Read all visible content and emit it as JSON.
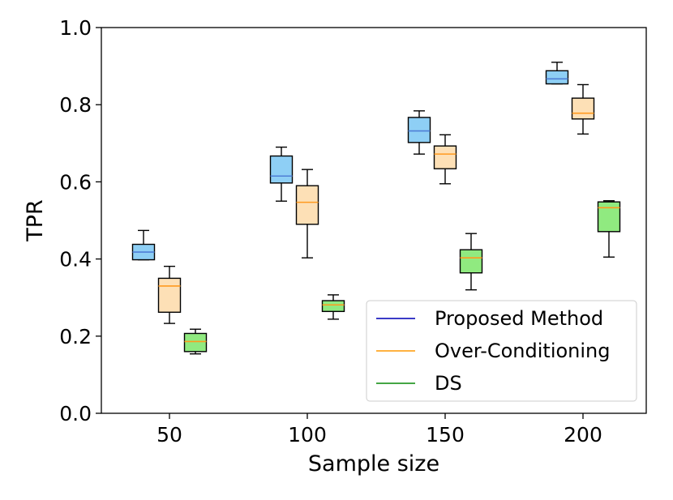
{
  "chart_data": {
    "type": "boxplot",
    "title": "",
    "xlabel": "Sample size",
    "ylabel": "TPR",
    "ylim": [
      0.0,
      1.0
    ],
    "yticks": [
      "0.0",
      "0.2",
      "0.4",
      "0.6",
      "0.8",
      "1.0"
    ],
    "categories": [
      "50",
      "100",
      "150",
      "200"
    ],
    "legend_position": "bottom-right",
    "series": [
      {
        "name": "Proposed Method",
        "legend_color": "#1f1fbf",
        "fill": "#8ecff5",
        "median_color": "#4f7fd6",
        "boxes": [
          {
            "whislo": 0.398,
            "q1": 0.398,
            "med": 0.418,
            "q3": 0.438,
            "whishi": 0.474
          },
          {
            "whislo": 0.55,
            "q1": 0.597,
            "med": 0.615,
            "q3": 0.667,
            "whishi": 0.69
          },
          {
            "whislo": 0.672,
            "q1": 0.702,
            "med": 0.732,
            "q3": 0.767,
            "whishi": 0.784
          },
          {
            "whislo": 0.854,
            "q1": 0.854,
            "med": 0.867,
            "q3": 0.888,
            "whishi": 0.91
          }
        ]
      },
      {
        "name": "Over-Conditioning",
        "legend_color": "#ffa726",
        "fill": "#fde0b6",
        "median_color": "#ff9a1f",
        "boxes": [
          {
            "whislo": 0.233,
            "q1": 0.262,
            "med": 0.33,
            "q3": 0.35,
            "whishi": 0.381
          },
          {
            "whislo": 0.403,
            "q1": 0.49,
            "med": 0.547,
            "q3": 0.59,
            "whishi": 0.632
          },
          {
            "whislo": 0.595,
            "q1": 0.634,
            "med": 0.672,
            "q3": 0.693,
            "whishi": 0.722
          },
          {
            "whislo": 0.724,
            "q1": 0.763,
            "med": 0.778,
            "q3": 0.817,
            "whishi": 0.852
          }
        ]
      },
      {
        "name": "DS",
        "legend_color": "#2a9a2a",
        "fill": "#90ea80",
        "median_color": "#ff9a1f",
        "boxes": [
          {
            "whislo": 0.154,
            "q1": 0.16,
            "med": 0.186,
            "q3": 0.207,
            "whishi": 0.218
          },
          {
            "whislo": 0.244,
            "q1": 0.264,
            "med": 0.281,
            "q3": 0.292,
            "whishi": 0.307
          },
          {
            "whislo": 0.32,
            "q1": 0.364,
            "med": 0.403,
            "q3": 0.424,
            "whishi": 0.466
          },
          {
            "whislo": 0.405,
            "q1": 0.471,
            "med": 0.533,
            "q3": 0.548,
            "whishi": 0.551
          }
        ]
      }
    ]
  }
}
